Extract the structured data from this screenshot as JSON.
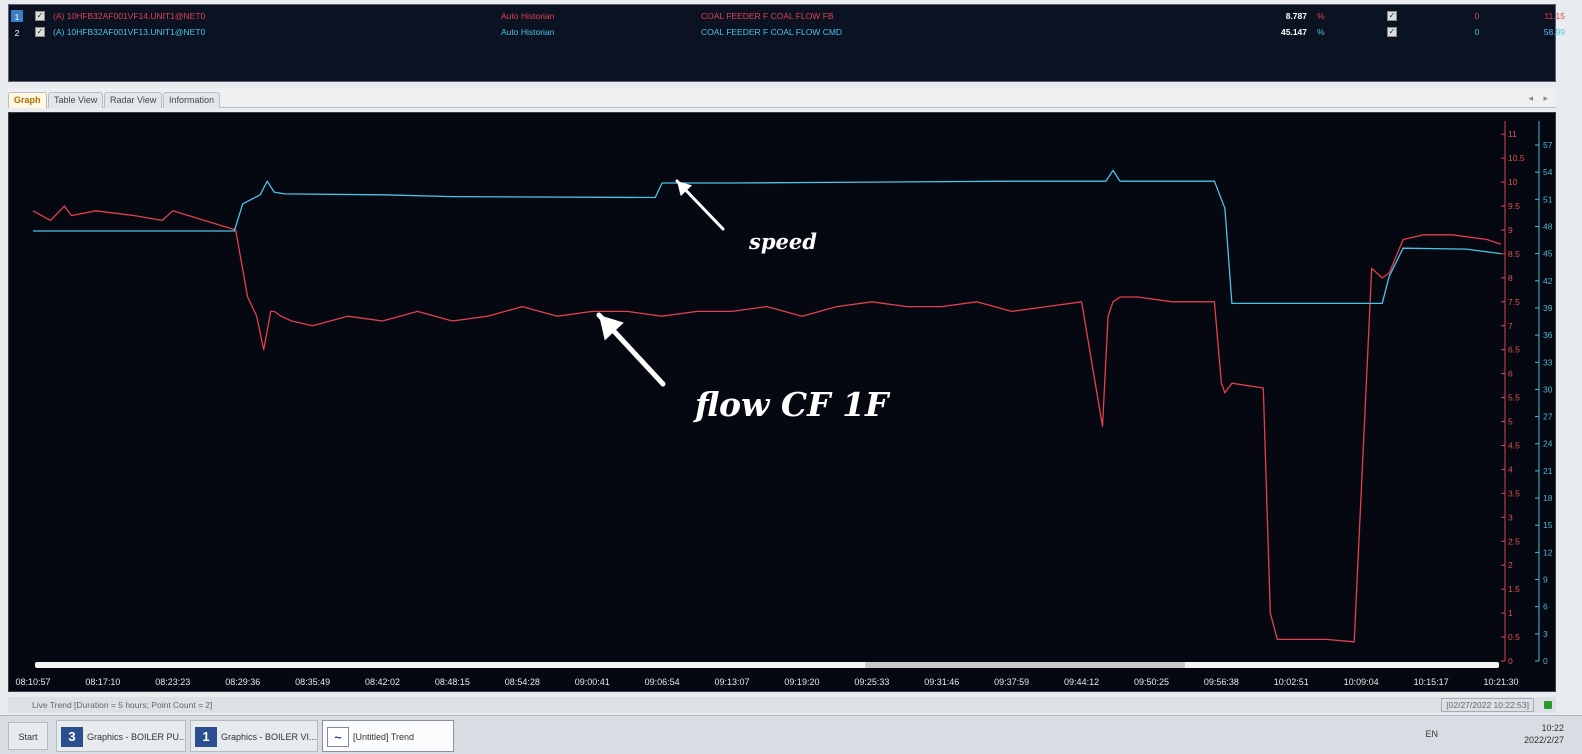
{
  "pens": [
    {
      "index": "1",
      "checked": "✓",
      "tag": "(A) 10HFB32AF001VF14.UNIT1@NET0",
      "source": "Auto Historian",
      "description": "COAL FEEDER F COAL FLOW FB",
      "value": "8.787",
      "unit": "%",
      "visible": "✓",
      "zero": "0",
      "max": "11.15",
      "color": "#e0404f"
    },
    {
      "index": "2",
      "checked": "✓",
      "tag": "(A) 10HFB32AF001VF13.UNIT1@NET0",
      "source": "Auto Historian",
      "description": "COAL FEEDER F COAL FLOW CMD",
      "value": "45.147",
      "unit": "%",
      "visible": "✓",
      "zero": "0",
      "max": "58.99",
      "color": "#4cc3e6"
    }
  ],
  "tabs": [
    "Graph",
    "Table View",
    "Radar View",
    "Information"
  ],
  "tab_arrows": "◂ ▸",
  "annotations": {
    "speed": "speed",
    "flow": "flow CF 1F"
  },
  "status": {
    "live": "Live Trend [Duration = 5 hours; Point Count = 2]",
    "timestamp": "[02/27/2022 10:22:53]"
  },
  "taskbar": {
    "start": "Start",
    "items": [
      {
        "icon": "3",
        "label": "Graphics - BOILER PU..."
      },
      {
        "icon": "1",
        "label": "Graphics - BOILER VI..."
      },
      {
        "icon": "~",
        "label": "[Untitled] Trend"
      }
    ],
    "lang": "EN",
    "time": "10:22",
    "date": "2022/2/27"
  },
  "chart_data": {
    "type": "line",
    "x": [
      "08:10:57",
      "08:17:10",
      "08:23:23",
      "08:29:36",
      "08:35:49",
      "08:42:02",
      "08:48:15",
      "08:54:28",
      "09:00:41",
      "09:06:54",
      "09:13:07",
      "09:19:20",
      "09:25:33",
      "09:31:46",
      "09:37:59",
      "09:44:12",
      "09:50:25",
      "09:56:38",
      "10:02:51",
      "10:09:04",
      "10:15:17",
      "10:21:30"
    ],
    "y_left_ticks": [
      "0",
      "0.5",
      "1",
      "1.5",
      "2",
      "2.5",
      "3",
      "3.5",
      "4",
      "4.5",
      "5",
      "5.5",
      "6",
      "6.5",
      "7",
      "7.5",
      "8",
      "8.5",
      "9",
      "9.5",
      "10",
      "10.5",
      "11"
    ],
    "y_right_ticks": [
      "0",
      "3",
      "6",
      "9",
      "12",
      "15",
      "18",
      "21",
      "24",
      "27",
      "30",
      "33",
      "36",
      "39",
      "42",
      "45",
      "48",
      "51",
      "54",
      "57"
    ],
    "ylim_left": [
      0,
      11.15
    ],
    "ylim_right": [
      0,
      58.99
    ],
    "series": [
      {
        "name": "COAL FEEDER F COAL FLOW FB",
        "axis": "left",
        "color": "#e0404f",
        "t": [
          0,
          0.25,
          0.45,
          0.55,
          0.9,
          1.45,
          1.85,
          2.0,
          2.9,
          3.07,
          3.2,
          3.3,
          3.4,
          3.45,
          3.55,
          3.7,
          4.0,
          4.5,
          5.0,
          5.5,
          6.0,
          6.5,
          7.0,
          7.5,
          8.0,
          8.5,
          9.0,
          9.5,
          10.0,
          10.5,
          11.0,
          11.5,
          12.0,
          12.5,
          13.0,
          13.5,
          14.0,
          14.5,
          15.0,
          15.3,
          15.38,
          15.45,
          15.55,
          15.8,
          16.3,
          16.6,
          16.9,
          17.0,
          17.05,
          17.15,
          17.6,
          17.7,
          17.8,
          18.0,
          18.5,
          18.9,
          19.15,
          19.3,
          19.4,
          19.6,
          19.9,
          20.3,
          20.8,
          21.0
        ],
        "v": [
          9.4,
          9.2,
          9.5,
          9.3,
          9.4,
          9.3,
          9.2,
          9.4,
          9.0,
          7.6,
          7.2,
          6.5,
          7.3,
          7.3,
          7.2,
          7.1,
          7.0,
          7.2,
          7.1,
          7.3,
          7.1,
          7.2,
          7.4,
          7.2,
          7.3,
          7.3,
          7.2,
          7.3,
          7.3,
          7.4,
          7.2,
          7.4,
          7.5,
          7.4,
          7.4,
          7.5,
          7.3,
          7.4,
          7.5,
          4.9,
          7.2,
          7.5,
          7.6,
          7.6,
          7.5,
          7.5,
          7.5,
          5.8,
          5.6,
          5.8,
          5.7,
          1.0,
          0.45,
          0.45,
          0.45,
          0.4,
          8.2,
          8.0,
          8.1,
          8.8,
          8.9,
          8.9,
          8.8,
          8.7
        ]
      },
      {
        "name": "COAL FEEDER F COAL FLOW CMD",
        "axis": "right",
        "color": "#4cc3e6",
        "t": [
          0,
          2.88,
          3.0,
          3.25,
          3.35,
          3.45,
          3.6,
          5.0,
          6.0,
          8.9,
          9.0,
          9.3,
          10.0,
          12.0,
          14.0,
          15.35,
          15.45,
          15.55,
          16.9,
          17.05,
          17.15,
          18.0,
          19.3,
          19.4,
          19.6,
          20.5,
          21.0
        ],
        "v": [
          47.5,
          47.5,
          50.5,
          51.5,
          53.0,
          51.8,
          51.6,
          51.5,
          51.3,
          51.2,
          52.8,
          52.8,
          52.8,
          52.9,
          53.0,
          53.0,
          54.2,
          53.0,
          53.0,
          50.0,
          39.5,
          39.5,
          39.5,
          42.5,
          45.6,
          45.5,
          45.0
        ]
      }
    ]
  }
}
